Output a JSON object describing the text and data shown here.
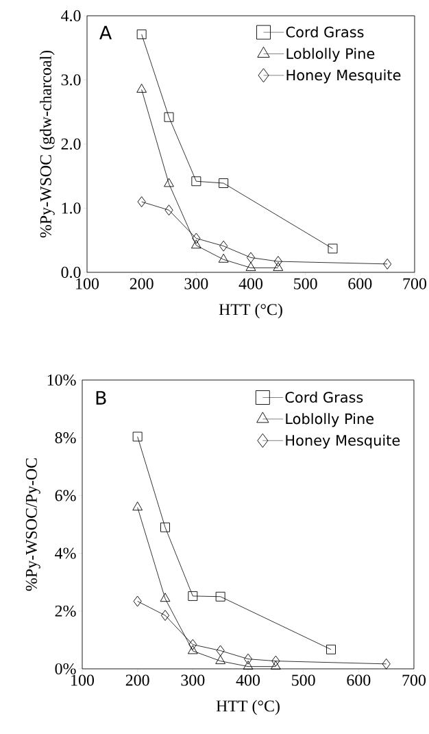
{
  "chart_data": [
    {
      "type": "line",
      "annotations": [
        "A"
      ],
      "xlabel": "HTT (°C)",
      "ylabel": "%Py-WSOC (gdw-charcoal)",
      "xlim": [
        100,
        700
      ],
      "xticks": [
        100,
        200,
        300,
        400,
        500,
        600,
        700
      ],
      "ylim": [
        0,
        4
      ],
      "yticks": [
        {
          "value": 0,
          "label": "0.0"
        },
        {
          "value": 1,
          "label": "1.0"
        },
        {
          "value": 2,
          "label": "2.0"
        },
        {
          "value": 3,
          "label": "3.0"
        },
        {
          "value": 4,
          "label": "4.0"
        }
      ],
      "legend": "top right",
      "series": [
        {
          "name": "Cord Grass",
          "color": "#000000",
          "marker": "square",
          "x": [
            200,
            250,
            300,
            350,
            550
          ],
          "values": [
            3.71,
            2.42,
            1.42,
            1.39,
            0.37
          ]
        },
        {
          "name": "Loblolly Pine",
          "color": "#000000",
          "marker": "triangle",
          "x": [
            200,
            250,
            300,
            350,
            400,
            450
          ],
          "values": [
            2.85,
            1.38,
            0.42,
            0.2,
            0.07,
            0.07
          ]
        },
        {
          "name": "Honey Mesquite",
          "color": "#000000",
          "marker": "diamond",
          "x": [
            200,
            250,
            300,
            350,
            400,
            450,
            650
          ],
          "values": [
            1.1,
            0.97,
            0.53,
            0.41,
            0.23,
            0.17,
            0.13
          ]
        }
      ]
    },
    {
      "type": "line",
      "annotations": [
        "B"
      ],
      "xlabel": "HTT (°C)",
      "ylabel": "%Py-WSOC/Py-OC",
      "xlim": [
        100,
        700
      ],
      "xticks": [
        100,
        200,
        300,
        400,
        500,
        600,
        700
      ],
      "ylim": [
        0,
        10
      ],
      "yticks": [
        {
          "value": 0,
          "label": "0%"
        },
        {
          "value": 2,
          "label": "2%"
        },
        {
          "value": 4,
          "label": "4%"
        },
        {
          "value": 6,
          "label": "6%"
        },
        {
          "value": 8,
          "label": "8%"
        },
        {
          "value": 10,
          "label": "10%"
        }
      ],
      "legend": "top right",
      "series": [
        {
          "name": "Cord Grass",
          "color": "#000000",
          "marker": "square",
          "x": [
            200,
            250,
            300,
            350,
            550
          ],
          "values": [
            8.04,
            4.9,
            2.52,
            2.5,
            0.67
          ]
        },
        {
          "name": "Loblolly Pine",
          "color": "#000000",
          "marker": "triangle",
          "x": [
            200,
            250,
            300,
            350,
            400,
            450
          ],
          "values": [
            5.59,
            2.43,
            0.62,
            0.27,
            0.08,
            0.08
          ]
        },
        {
          "name": "Honey Mesquite",
          "color": "#000000",
          "marker": "diamond",
          "x": [
            200,
            250,
            300,
            350,
            400,
            450,
            650
          ],
          "values": [
            2.34,
            1.85,
            0.84,
            0.63,
            0.34,
            0.27,
            0.17
          ]
        }
      ]
    }
  ]
}
